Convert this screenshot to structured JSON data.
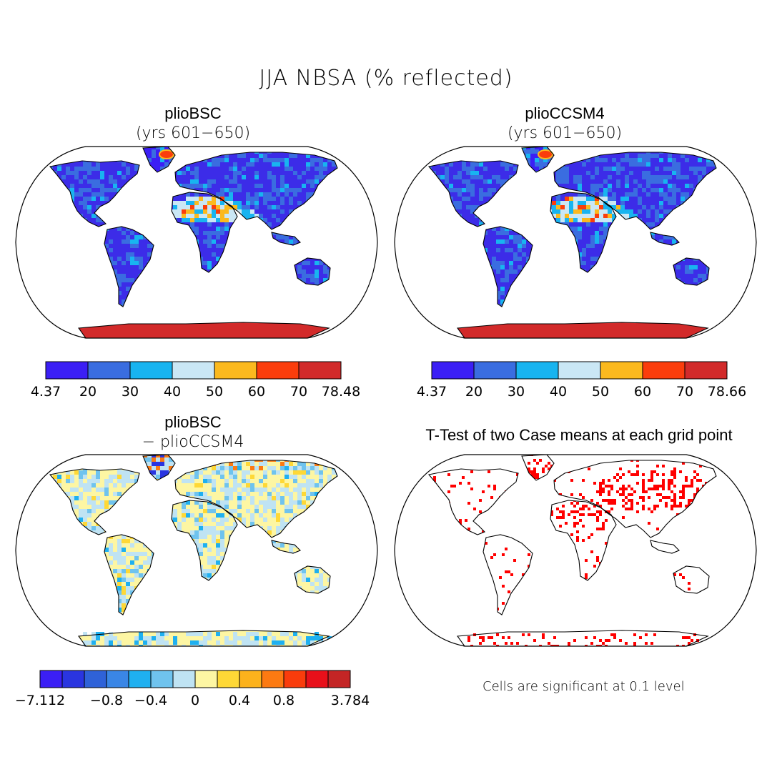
{
  "figure": {
    "title": "JJA NBSA (% reflected)",
    "note": "Cells are significant at 0.1 level"
  },
  "colors": {
    "blue7": [
      "#3b1ff5",
      "#3a6de0",
      "#18b4f0",
      "#cae7f5",
      "#fbb91e",
      "#fb3d0c",
      "#d22a2a"
    ],
    "diff13": [
      "#3b1ff5",
      "#2a35e0",
      "#2f62d8",
      "#3a86e6",
      "#1fb0f0",
      "#6fc3ee",
      "#bfe3f3",
      "#fdf6a3",
      "#fed836",
      "#fcb21c",
      "#fc7a12",
      "#f93c0c",
      "#e8101a",
      "#c42525"
    ],
    "land_base": "#3c2ce8",
    "antarctic": "#d22a2a",
    "sig": "#ff0000"
  },
  "chart_data": [
    {
      "type": "heatmap",
      "panel": "top-left",
      "title": "plioBSC",
      "subtitle": "(yrs 601−650)",
      "colorbar": {
        "min": 4.37,
        "max": 78.48,
        "levels": [
          4.37,
          20,
          30,
          40,
          50,
          60,
          70,
          78.48
        ],
        "tick_labels": [
          "4.37",
          "20",
          "30",
          "40",
          "50",
          "60",
          "70",
          "78.48"
        ]
      }
    },
    {
      "type": "heatmap",
      "panel": "top-right",
      "title": "plioCCSM4",
      "subtitle": "(yrs 601−650)",
      "colorbar": {
        "min": 4.37,
        "max": 78.66,
        "levels": [
          4.37,
          20,
          30,
          40,
          50,
          60,
          70,
          78.66
        ],
        "tick_labels": [
          "4.37",
          "20",
          "30",
          "40",
          "50",
          "60",
          "70",
          "78.66"
        ]
      }
    },
    {
      "type": "heatmap",
      "panel": "bottom-left",
      "title": "plioBSC",
      "subtitle": "− plioCCSM4",
      "colorbar": {
        "min": -7.112,
        "max": 3.784,
        "tick_labels": [
          "−7.112",
          "−0.8",
          "−0.4",
          "0",
          "0.4",
          "0.8",
          "3.784"
        ],
        "tick_box_index": [
          0,
          3,
          5,
          7,
          9,
          11,
          14
        ]
      }
    },
    {
      "type": "heatmap",
      "panel": "bottom-right",
      "title": "T-Test of two Case means at each grid point",
      "significance_level": 0.1
    }
  ]
}
